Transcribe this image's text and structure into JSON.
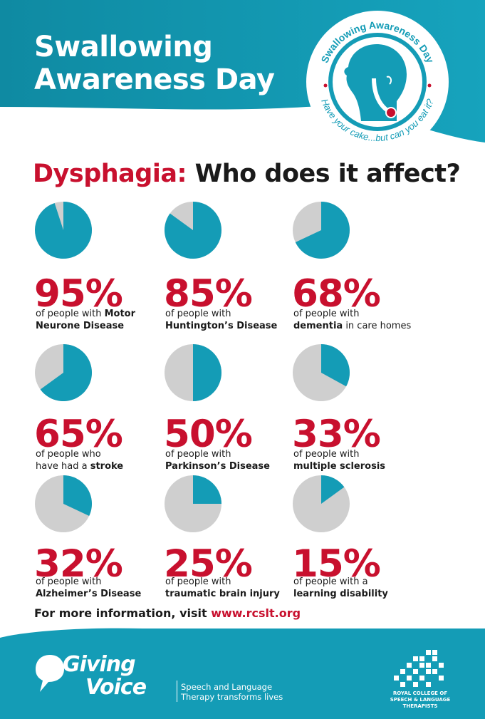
{
  "header": {
    "title_line1": "Swallowing",
    "title_line2": "Awareness Day"
  },
  "badge": {
    "top_text": "Swallowing Awareness Day",
    "bottom_text": "Have your cake...but can you eat it?",
    "icon": "head-profile-throat-icon"
  },
  "subtitle": {
    "part1": "Dysphagia:",
    "part2": "Who does it affect?"
  },
  "chart_data": {
    "type": "pie",
    "unit": "%",
    "items": [
      {
        "value": 95,
        "label": "95%",
        "line1": "of people with",
        "bold1": "Motor",
        "line2_bold": "Neurone Disease"
      },
      {
        "value": 85,
        "label": "85%",
        "line1": "of people with",
        "line2_bold": "Huntington’s Disease"
      },
      {
        "value": 68,
        "label": "68%",
        "line1": "of people with",
        "line2_bold": "dementia",
        "line2_rest": " in care homes"
      },
      {
        "value": 65,
        "label": "65%",
        "line1": "of people who",
        "line2_plain": "have had a ",
        "line2_bold": "stroke"
      },
      {
        "value": 50,
        "label": "50%",
        "line1": "of people with",
        "line2_bold": "Parkinson’s Disease"
      },
      {
        "value": 33,
        "label": "33%",
        "line1": "of people with",
        "line2_bold": "multiple sclerosis"
      },
      {
        "value": 32,
        "label": "32%",
        "line1": "of people with",
        "line2_bold": "Alzheimer’s Disease"
      },
      {
        "value": 25,
        "label": "25%",
        "line1": "of people with",
        "line2_bold": "traumatic brain injury"
      },
      {
        "value": 15,
        "label": "15%",
        "line1": "of people with a",
        "line2_bold": "learning disability"
      }
    ],
    "colors": {
      "filled": "#149cb6",
      "remainder": "#cfcfcf"
    }
  },
  "info": {
    "text": "For more information, visit",
    "url": "www.rcslt.org"
  },
  "footer": {
    "giving": "Giving",
    "voice": "Voice",
    "tag_line1": "Speech and Language",
    "tag_line2": "Therapy transforms lives",
    "rcslt_line1": "ROYAL COLLEGE OF",
    "rcslt_line2": "SPEECH & LANGUAGE",
    "rcslt_line3": "THERAPISTS"
  },
  "colors": {
    "teal": "#149cb6",
    "teal_dark": "#0f7f95",
    "red": "#c8102e",
    "grey": "#cfcfcf"
  }
}
